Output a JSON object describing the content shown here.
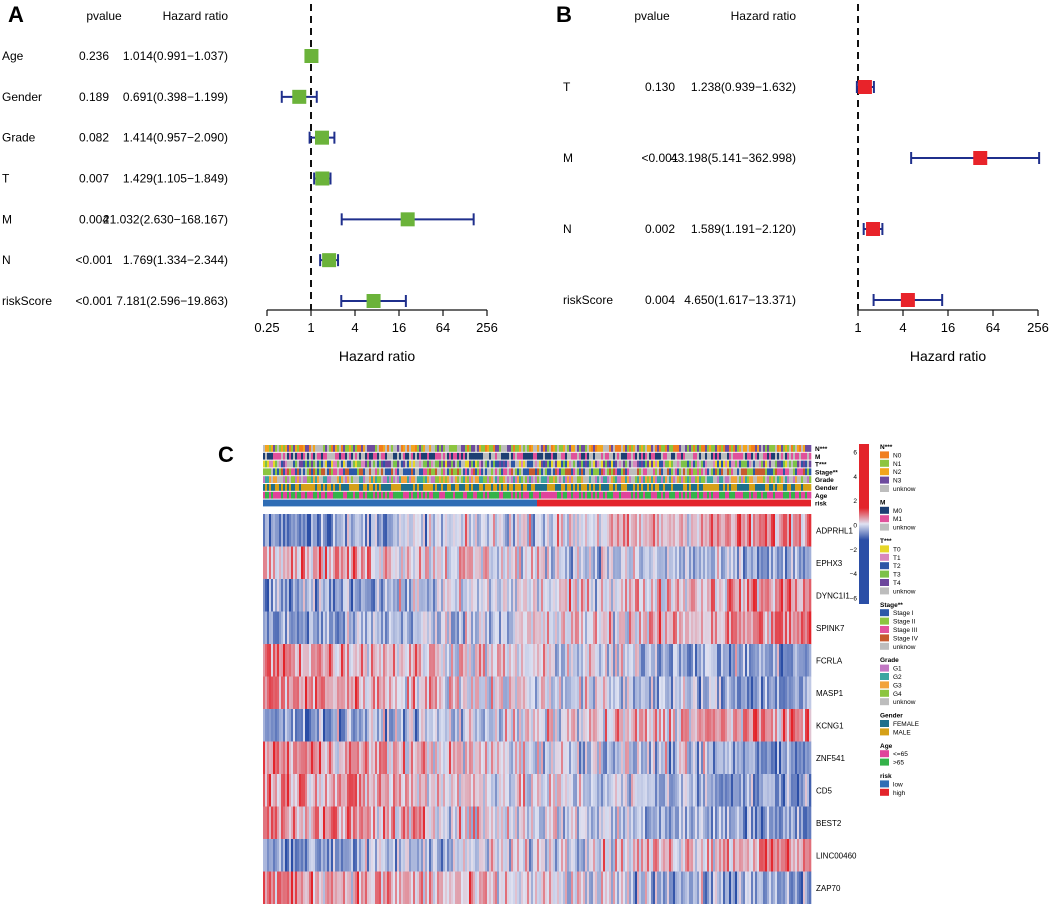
{
  "panels": {
    "a": {
      "letter": "A"
    },
    "b": {
      "letter": "B"
    },
    "c": {
      "letter": "C"
    }
  },
  "colors": {
    "green_box": "#6bb33a",
    "red_box": "#e8232a",
    "ci_line": "#1f2f8c",
    "heat_low": "#2b4ea6",
    "heat_mid": "#dfe2f2",
    "heat_high": "#e3242b"
  },
  "chart_data": [
    {
      "type": "forest",
      "panel": "A",
      "header": {
        "pvalue": "pvalue",
        "hr": "Hazard ratio"
      },
      "xlabel": "Hazard ratio",
      "scale": "log2",
      "xlim": [
        0.25,
        256
      ],
      "ticks": [
        {
          "value": 0.25,
          "label": "0.25"
        },
        {
          "value": 1,
          "label": "1"
        },
        {
          "value": 4,
          "label": "4"
        },
        {
          "value": 16,
          "label": "16"
        },
        {
          "value": 64,
          "label": "64"
        },
        {
          "value": 256,
          "label": "256"
        }
      ],
      "reference_line": 1,
      "rows": [
        {
          "name": "Age",
          "pvalue": "0.236",
          "hr_text": "1.014(0.991−1.037)",
          "hr": 1.014,
          "lo": 0.991,
          "hi": 1.037
        },
        {
          "name": "Gender",
          "pvalue": "0.189",
          "hr_text": "0.691(0.398−1.199)",
          "hr": 0.691,
          "lo": 0.398,
          "hi": 1.199
        },
        {
          "name": "Grade",
          "pvalue": "0.082",
          "hr_text": "1.414(0.957−2.090)",
          "hr": 1.414,
          "lo": 0.957,
          "hi": 2.09
        },
        {
          "name": "T",
          "pvalue": "0.007",
          "hr_text": "1.429(1.105−1.849)",
          "hr": 1.429,
          "lo": 1.105,
          "hi": 1.849
        },
        {
          "name": "M",
          "pvalue": "0.004",
          "hr_text": "21.032(2.630−168.167)",
          "hr": 21.032,
          "lo": 2.63,
          "hi": 168.167
        },
        {
          "name": "N",
          "pvalue": "<0.001",
          "hr_text": "1.769(1.334−2.344)",
          "hr": 1.769,
          "lo": 1.334,
          "hi": 2.344
        },
        {
          "name": "riskScore",
          "pvalue": "<0.001",
          "hr_text": "7.181(2.596−19.863)",
          "hr": 7.181,
          "lo": 2.596,
          "hi": 19.863
        }
      ]
    },
    {
      "type": "forest",
      "panel": "B",
      "header": {
        "pvalue": "pvalue",
        "hr": "Hazard ratio"
      },
      "xlabel": "Hazard ratio",
      "scale": "log2",
      "xlim": [
        1,
        256
      ],
      "ticks": [
        {
          "value": 1,
          "label": "1"
        },
        {
          "value": 4,
          "label": "4"
        },
        {
          "value": 16,
          "label": "16"
        },
        {
          "value": 64,
          "label": "64"
        },
        {
          "value": 256,
          "label": "256"
        }
      ],
      "reference_line": 1,
      "rows": [
        {
          "name": "T",
          "pvalue": "0.130",
          "hr_text": "1.238(0.939−1.632)",
          "hr": 1.238,
          "lo": 0.939,
          "hi": 1.632
        },
        {
          "name": "M",
          "pvalue": "<0.001",
          "hr_text": "43.198(5.141−362.998)",
          "hr": 43.198,
          "lo": 5.141,
          "hi": 362.998
        },
        {
          "name": "N",
          "pvalue": "0.002",
          "hr_text": "1.589(1.191−2.120)",
          "hr": 1.589,
          "lo": 1.191,
          "hi": 2.12
        },
        {
          "name": "riskScore",
          "pvalue": "0.004",
          "hr_text": "4.650(1.617−13.371)",
          "hr": 4.65,
          "lo": 1.617,
          "hi": 13.371
        }
      ]
    },
    {
      "type": "heatmap",
      "panel": "C",
      "annotation_tracks": [
        "N***",
        "M",
        "T***",
        "Stage**",
        "Grade",
        "Gender",
        "Age",
        "risk"
      ],
      "genes": [
        "ADPRHL1",
        "EPHX3",
        "DYNC1I1",
        "SPINK7",
        "FCRLA",
        "MASP1",
        "KCNG1",
        "ZNF541",
        "CD5",
        "BEST2",
        "LINC00460",
        "ZAP70"
      ],
      "gene_trend_low_to_high_risk": [
        1,
        -1,
        1,
        1,
        -1,
        -1,
        1,
        -1,
        -1,
        -1,
        1,
        -1
      ],
      "risk_split_fraction": 0.5,
      "colorbar": {
        "ticks": [
          "6",
          "4",
          "2",
          "0",
          "−2",
          "−4",
          "−6"
        ],
        "range": [
          -6,
          6
        ]
      },
      "legends": [
        {
          "title": "N***",
          "items": [
            {
              "label": "N0",
              "color": "#f07f1e"
            },
            {
              "label": "N1",
              "color": "#8cc540"
            },
            {
              "label": "N2",
              "color": "#f2a51d"
            },
            {
              "label": "N3",
              "color": "#6e4b9e"
            },
            {
              "label": "unknow",
              "color": "#bdbdbd"
            }
          ]
        },
        {
          "title": "M",
          "items": [
            {
              "label": "M0",
              "color": "#1d3f73"
            },
            {
              "label": "M1",
              "color": "#e0519b"
            },
            {
              "label": "unknow",
              "color": "#bdbdbd"
            }
          ]
        },
        {
          "title": "T***",
          "items": [
            {
              "label": "T0",
              "color": "#e6d629"
            },
            {
              "label": "T1",
              "color": "#d887bd"
            },
            {
              "label": "T2",
              "color": "#2d56a6"
            },
            {
              "label": "T3",
              "color": "#7cc14a"
            },
            {
              "label": "T4",
              "color": "#6c469c"
            },
            {
              "label": "unknow",
              "color": "#bdbdbd"
            }
          ]
        },
        {
          "title": "Stage**",
          "items": [
            {
              "label": "Stage I",
              "color": "#2b58a8"
            },
            {
              "label": "Stage II",
              "color": "#8cc540"
            },
            {
              "label": "Stage III",
              "color": "#e2539d"
            },
            {
              "label": "Stage IV",
              "color": "#c65a2e"
            },
            {
              "label": "unknow",
              "color": "#bdbdbd"
            }
          ]
        },
        {
          "title": "Grade",
          "items": [
            {
              "label": "G1",
              "color": "#c278c4"
            },
            {
              "label": "G2",
              "color": "#3aa6a0"
            },
            {
              "label": "G3",
              "color": "#f2a33a"
            },
            {
              "label": "G4",
              "color": "#8cc540"
            },
            {
              "label": "unknow",
              "color": "#bdbdbd"
            }
          ]
        },
        {
          "title": "Gender",
          "items": [
            {
              "label": "FEMALE",
              "color": "#1f6f8b"
            },
            {
              "label": "MALE",
              "color": "#d5a018"
            }
          ]
        },
        {
          "title": "Age",
          "items": [
            {
              "label": "<=65",
              "color": "#e0439b"
            },
            {
              "label": ">65",
              "color": "#35b24a"
            }
          ]
        },
        {
          "title": "risk",
          "items": [
            {
              "label": "low",
              "color": "#2f6db5"
            },
            {
              "label": "high",
              "color": "#e3242b"
            }
          ]
        }
      ]
    }
  ]
}
